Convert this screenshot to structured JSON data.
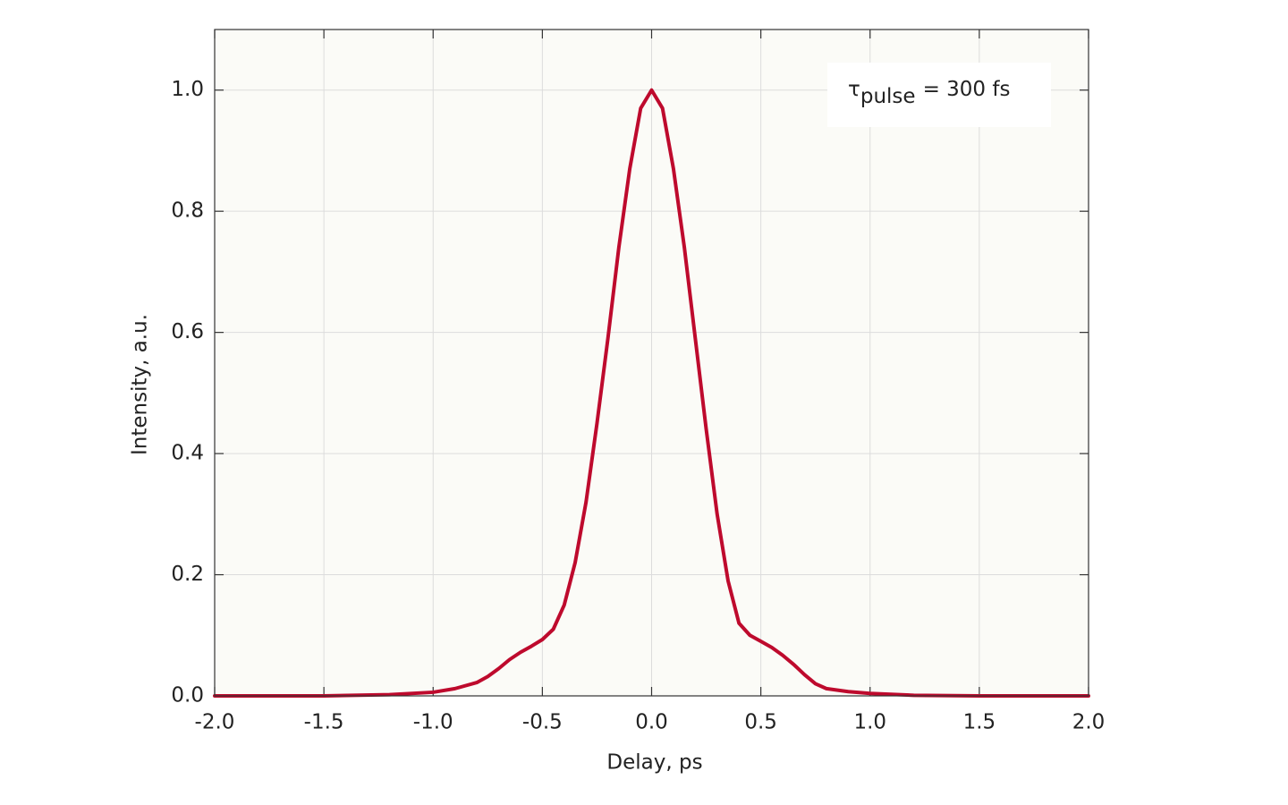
{
  "chart_data": {
    "type": "line",
    "xlabel": "Delay, ps",
    "ylabel": "Intensity, a.u.",
    "annotation": {
      "symbol": "τ",
      "subscript": "pulse",
      "text": "= 300 fs"
    },
    "x": [
      -2,
      -1.5,
      -1.2,
      -1,
      -0.9,
      -0.8,
      -0.75,
      -0.7,
      -0.65,
      -0.6,
      -0.55,
      -0.5,
      -0.45,
      -0.4,
      -0.35,
      -0.3,
      -0.25,
      -0.2,
      -0.15,
      -0.1,
      -0.05,
      0,
      0.05,
      0.1,
      0.15,
      0.2,
      0.25,
      0.3,
      0.35,
      0.4,
      0.45,
      0.5,
      0.55,
      0.6,
      0.65,
      0.7,
      0.75,
      0.8,
      0.9,
      1,
      1.2,
      1.5,
      2
    ],
    "series": [
      {
        "color": "#be0a2d",
        "values": [
          0,
          0,
          0.002,
          0.006,
          0.012,
          0.022,
          0.032,
          0.045,
          0.06,
          0.072,
          0.082,
          0.093,
          0.11,
          0.15,
          0.22,
          0.32,
          0.45,
          0.59,
          0.74,
          0.87,
          0.97,
          1,
          0.97,
          0.87,
          0.74,
          0.59,
          0.44,
          0.3,
          0.19,
          0.12,
          0.1,
          0.09,
          0.08,
          0.067,
          0.052,
          0.035,
          0.02,
          0.012,
          0.007,
          0.004,
          0.001,
          0,
          0
        ]
      }
    ],
    "xlim": [
      -2,
      2
    ],
    "ylim": [
      0,
      1.1
    ],
    "xticks": [
      {
        "value": -2,
        "label": "-2.0"
      },
      {
        "value": -1.5,
        "label": "-1.5"
      },
      {
        "value": -1,
        "label": "-1.0"
      },
      {
        "value": -0.5,
        "label": "-0.5"
      },
      {
        "value": 0,
        "label": "0.0"
      },
      0.5,
      {
        "value": 1,
        "label": "1.0"
      },
      1.5,
      {
        "value": 2,
        "label": "2.0"
      }
    ],
    "yticks": [
      {
        "value": 0,
        "label": "0.0"
      },
      0.2,
      0.4,
      0.6,
      0.8,
      {
        "value": 1,
        "label": "1.0"
      }
    ],
    "grid": true
  }
}
